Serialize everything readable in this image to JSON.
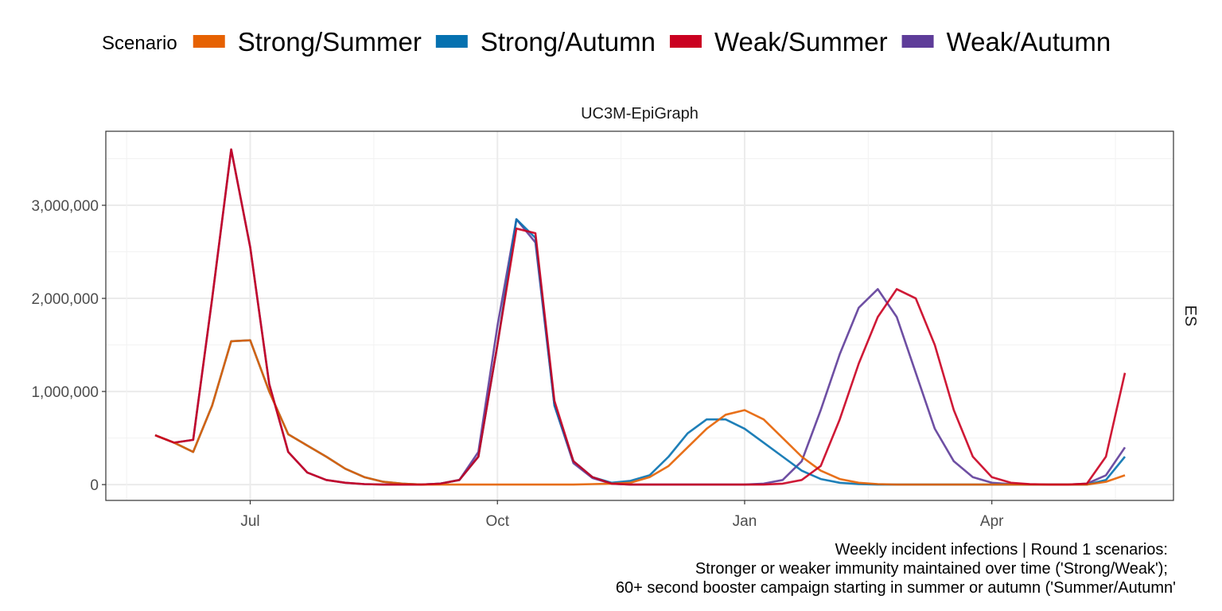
{
  "chart_data": {
    "type": "line",
    "legend_title": "Scenario",
    "facet_label": "UC3M-EpiGraph",
    "row_label": "ES",
    "caption": [
      "Weekly incident infections | Round 1 scenarios:",
      "Stronger or weaker immunity maintained over time ('Strong/Weak');",
      "60+ second booster campaign starting in summer or autumn ('Summer/Autumn'"
    ],
    "categories": [
      null,
      null,
      null,
      null,
      null,
      "Jul",
      null,
      null,
      null,
      null,
      null,
      null,
      null,
      null,
      null,
      null,
      null,
      null,
      "Oct",
      null,
      null,
      null,
      null,
      null,
      null,
      null,
      null,
      null,
      null,
      null,
      null,
      "Jan",
      null,
      null,
      null,
      null,
      null,
      null,
      null,
      null,
      null,
      null,
      null,
      null,
      "Apr",
      null,
      null,
      null,
      null,
      null,
      null,
      null
    ],
    "ylim": [
      -170000,
      3795000
    ],
    "yticks": [
      0,
      {
        "value": 1000000,
        "label": "1,000,000"
      },
      {
        "value": 2000000,
        "label": "2,000,000"
      },
      {
        "value": 3000000,
        "label": "3,000,000"
      }
    ],
    "grid": true,
    "legend_position": "top",
    "series": [
      {
        "name": "Strong/Summer",
        "color": "#e66101",
        "values": [
          530000,
          450000,
          350000,
          850000,
          1540000,
          1550000,
          1000000,
          540000,
          420000,
          300000,
          170000,
          80000,
          30000,
          10000,
          0,
          0,
          0,
          0,
          0,
          0,
          0,
          0,
          0,
          5000,
          10000,
          20000,
          80000,
          200000,
          400000,
          600000,
          750000,
          800000,
          700000,
          500000,
          300000,
          150000,
          60000,
          20000,
          5000,
          0,
          0,
          0,
          0,
          0,
          0,
          0,
          0,
          0,
          0,
          0,
          30000,
          100000
        ]
      },
      {
        "name": "Strong/Autumn",
        "color": "#0571b0",
        "values": [
          530000,
          450000,
          350000,
          850000,
          1540000,
          1550000,
          1000000,
          540000,
          420000,
          300000,
          170000,
          80000,
          30000,
          10000,
          0,
          10000,
          50000,
          300000,
          1500000,
          2850000,
          2650000,
          850000,
          250000,
          80000,
          20000,
          40000,
          100000,
          300000,
          550000,
          700000,
          700000,
          600000,
          450000,
          300000,
          150000,
          60000,
          20000,
          5000,
          0,
          0,
          0,
          0,
          0,
          0,
          0,
          0,
          0,
          0,
          0,
          0,
          50000,
          300000
        ]
      },
      {
        "name": "Weak/Summer",
        "color": "#ca0020",
        "values": [
          530000,
          450000,
          480000,
          2000000,
          3600000,
          2550000,
          1080000,
          350000,
          130000,
          50000,
          20000,
          5000,
          0,
          0,
          0,
          10000,
          50000,
          300000,
          1500000,
          2750000,
          2700000,
          900000,
          250000,
          80000,
          10000,
          0,
          0,
          0,
          0,
          0,
          0,
          0,
          0,
          10000,
          50000,
          200000,
          700000,
          1300000,
          1800000,
          2100000,
          2000000,
          1500000,
          800000,
          300000,
          80000,
          20000,
          5000,
          0,
          0,
          10000,
          300000,
          1200000
        ]
      },
      {
        "name": "Weak/Autumn",
        "color": "#5e3c99",
        "values": [
          530000,
          450000,
          480000,
          2000000,
          3600000,
          2550000,
          1080000,
          350000,
          130000,
          50000,
          20000,
          5000,
          0,
          0,
          0,
          10000,
          50000,
          350000,
          1700000,
          2850000,
          2600000,
          850000,
          230000,
          70000,
          10000,
          0,
          0,
          0,
          0,
          0,
          0,
          0,
          10000,
          50000,
          250000,
          800000,
          1400000,
          1900000,
          2100000,
          1800000,
          1200000,
          600000,
          250000,
          80000,
          20000,
          5000,
          0,
          0,
          0,
          10000,
          100000,
          400000
        ]
      }
    ]
  }
}
